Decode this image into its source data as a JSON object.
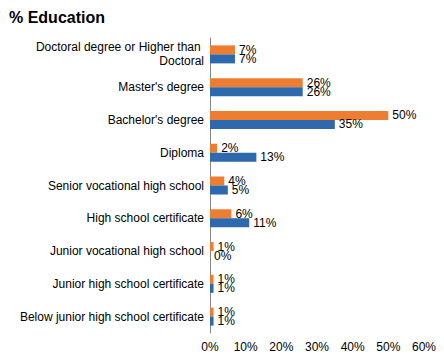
{
  "chart_data": {
    "type": "bar",
    "title": "% Education",
    "orientation": "horizontal",
    "categories": [
      "Doctoral degree or Higher than Doctoral",
      "Master's degree",
      "Bachelor's degree",
      "Diploma",
      "Senior vocational high school",
      "High school certificate",
      "Junior vocational high school",
      "Junior high school certificate",
      "Below junior high school certificate"
    ],
    "series": [
      {
        "color": "#ED7D31",
        "values": [
          7,
          26,
          50,
          2,
          4,
          6,
          1,
          1,
          1
        ],
        "value_labels": [
          "7%",
          "26%",
          "50%",
          "2%",
          "4%",
          "6%",
          "1%",
          "1%",
          "1%"
        ]
      },
      {
        "color": "#2E69AE",
        "values": [
          7,
          26,
          35,
          13,
          5,
          11,
          0,
          1,
          1
        ],
        "value_labels": [
          "7%",
          "26%",
          "35%",
          "13%",
          "5%",
          "11%",
          "0%",
          "1%",
          "1%"
        ]
      }
    ],
    "xlim": [
      0,
      60
    ],
    "xticks": [
      {
        "value": 0,
        "label": "0%"
      },
      {
        "value": 10,
        "label": "10%"
      },
      {
        "value": 20,
        "label": "20%"
      },
      {
        "value": 30,
        "label": "30%"
      },
      {
        "value": 40,
        "label": "40%"
      },
      {
        "value": 50,
        "label": "50%"
      },
      {
        "value": 60,
        "label": "60%"
      }
    ],
    "data_labels": true,
    "grid": false
  }
}
